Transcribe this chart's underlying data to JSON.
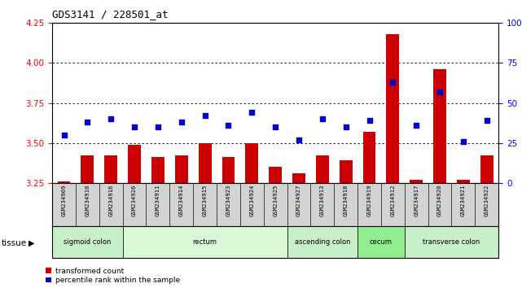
{
  "title": "GDS3141 / 228501_at",
  "samples": [
    "GSM234909",
    "GSM234910",
    "GSM234916",
    "GSM234926",
    "GSM234911",
    "GSM234914",
    "GSM234915",
    "GSM234923",
    "GSM234924",
    "GSM234925",
    "GSM234927",
    "GSM234913",
    "GSM234918",
    "GSM234919",
    "GSM234912",
    "GSM234917",
    "GSM234920",
    "GSM234921",
    "GSM234922"
  ],
  "bar_values": [
    3.26,
    3.42,
    3.42,
    3.49,
    3.41,
    3.42,
    3.5,
    3.41,
    3.5,
    3.35,
    3.31,
    3.42,
    3.39,
    3.57,
    4.18,
    3.27,
    3.96,
    3.27,
    3.42
  ],
  "percentile_values": [
    30,
    38,
    40,
    35,
    35,
    38,
    42,
    36,
    44,
    35,
    27,
    40,
    35,
    39,
    63,
    36,
    57,
    26,
    39
  ],
  "ylim_left": [
    3.25,
    4.25
  ],
  "ybase": 3.25,
  "ylim_right": [
    0,
    100
  ],
  "yticks_left": [
    3.25,
    3.5,
    3.75,
    4.0,
    4.25
  ],
  "yticks_right": [
    0,
    25,
    50,
    75,
    100
  ],
  "grid_values": [
    3.5,
    3.75,
    4.0
  ],
  "bar_color": "#cc0000",
  "dot_color": "#0000cc",
  "bg_color": "#ffffff",
  "label_bg_color": "#d3d3d3",
  "tissue_groups": [
    {
      "label": "sigmoid colon",
      "start": 0,
      "end": 3,
      "color": "#c8f0c8"
    },
    {
      "label": "rectum",
      "start": 3,
      "end": 10,
      "color": "#d8f8d8"
    },
    {
      "label": "ascending colon",
      "start": 10,
      "end": 13,
      "color": "#c8f0c8"
    },
    {
      "label": "cecum",
      "start": 13,
      "end": 15,
      "color": "#90ee90"
    },
    {
      "label": "transverse colon",
      "start": 15,
      "end": 19,
      "color": "#c8f0c8"
    }
  ],
  "legend_items": [
    {
      "label": "transformed count",
      "color": "#cc0000"
    },
    {
      "label": "percentile rank within the sample",
      "color": "#0000cc"
    }
  ],
  "bar_width": 0.55
}
